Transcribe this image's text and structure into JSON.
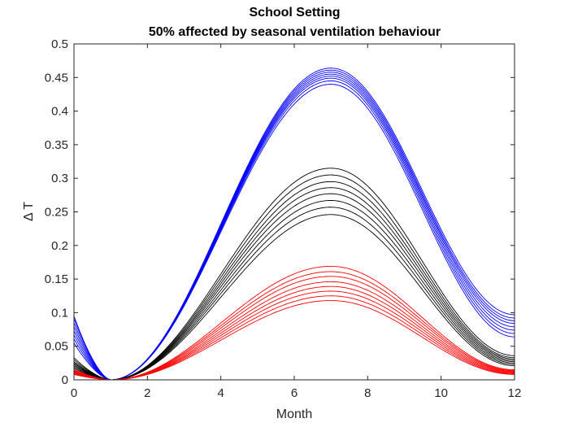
{
  "chart_data": {
    "type": "line",
    "title": "School Setting",
    "subtitle": "50% affected by seasonal ventilation behaviour",
    "xlabel": "Month",
    "ylabel": "Δ T",
    "xlim": [
      0,
      12
    ],
    "ylim": [
      0,
      0.5
    ],
    "xticks": [
      "0",
      "2",
      "4",
      "6",
      "8",
      "10",
      "12"
    ],
    "yticks": [
      "0",
      "0.05",
      "0.1",
      "0.15",
      "0.2",
      "0.25",
      "0.3",
      "0.35",
      "0.4",
      "0.45",
      "0.5"
    ],
    "grid": false,
    "legend": "none",
    "curve_shape": "Δ rises from a minimum of 0 at month 1 to a peak near month 7 and falls toward month 12; each group has 8 nearly parallel curves",
    "groups": [
      {
        "color": "#0000ff",
        "peak_month": 7,
        "peak_values": [
          0.44,
          0.445,
          0.449,
          0.452,
          0.455,
          0.458,
          0.461,
          0.464
        ],
        "values_at_month_0": [
          0.055,
          0.061,
          0.067,
          0.073,
          0.079,
          0.085,
          0.091,
          0.095
        ],
        "values_at_month_12": [
          0.064,
          0.069,
          0.074,
          0.079,
          0.084,
          0.088,
          0.092,
          0.097
        ]
      },
      {
        "color": "#000000",
        "peak_month": 7,
        "peak_values": [
          0.246,
          0.257,
          0.267,
          0.277,
          0.286,
          0.295,
          0.305,
          0.315
        ],
        "values_at_month_0": [
          0.017,
          0.019,
          0.021,
          0.023,
          0.025,
          0.027,
          0.03,
          0.033
        ],
        "values_at_month_12": [
          0.021,
          0.023,
          0.025,
          0.027,
          0.029,
          0.031,
          0.033,
          0.036
        ]
      },
      {
        "color": "#ff0000",
        "peak_month": 7,
        "peak_values": [
          0.118,
          0.125,
          0.132,
          0.139,
          0.146,
          0.154,
          0.161,
          0.169
        ],
        "values_at_month_0": [
          0.008,
          0.009,
          0.01,
          0.011,
          0.012,
          0.013,
          0.014,
          0.015
        ],
        "values_at_month_12": [
          0.008,
          0.009,
          0.01,
          0.011,
          0.012,
          0.013,
          0.014,
          0.015
        ]
      }
    ]
  }
}
